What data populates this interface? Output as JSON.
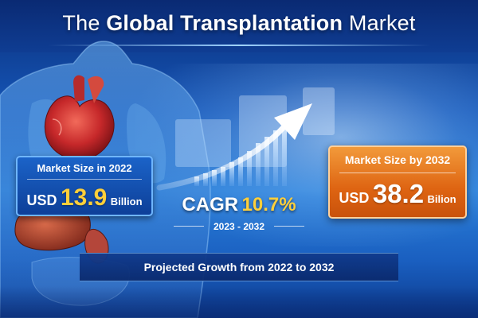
{
  "title": {
    "prefix": "The",
    "emphasis": "Global Transplantation",
    "suffix": "Market"
  },
  "market_2022": {
    "label": "Market Size in 2022",
    "currency": "USD",
    "value": "13.9",
    "unit": "Billion"
  },
  "cagr": {
    "label": "CAGR",
    "value": "10.7%",
    "period": "2023 - 2032"
  },
  "market_2032": {
    "label": "Market Size by 2032",
    "currency": "USD",
    "value": "38.2",
    "unit": "Bilion"
  },
  "footer": {
    "text": "Projected Growth from 2022 to 2032"
  },
  "colors": {
    "accent_gold": "#ffcf3a",
    "orange_box": "#de6412",
    "blue_box": "#0d3f98",
    "background": "#1556b8"
  },
  "icons": [
    "human-body-organs-illustration",
    "growth-arrow-icon",
    "bar-chart-graphic"
  ]
}
